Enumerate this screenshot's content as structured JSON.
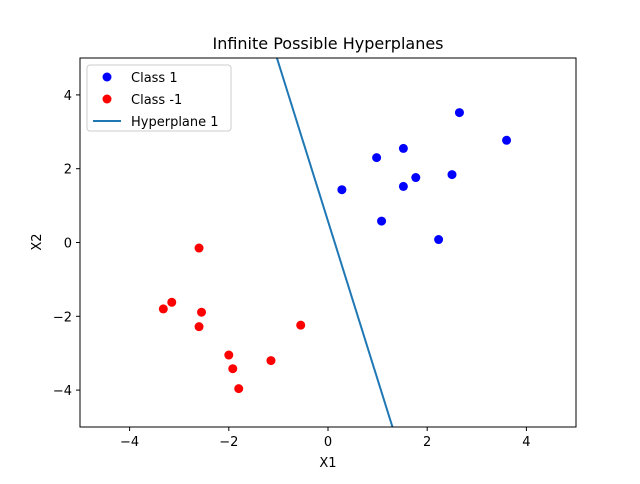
{
  "chart_data": {
    "type": "scatter",
    "title": "Infinite Possible Hyperplanes",
    "xlabel": "X1",
    "ylabel": "X2",
    "xlim": [
      -5,
      5
    ],
    "ylim": [
      -5,
      5
    ],
    "xticks": [
      -4,
      -2,
      0,
      2,
      4
    ],
    "yticks": [
      -4,
      -2,
      0,
      2,
      4
    ],
    "xtick_labels": [
      "−4",
      "−2",
      "0",
      "2",
      "4"
    ],
    "ytick_labels": [
      "−4",
      "−2",
      "0",
      "2",
      "4"
    ],
    "grid": false,
    "legend_position": "top-left",
    "series": [
      {
        "name": "Class 1",
        "kind": "scatter",
        "color": "#0000ff",
        "points": [
          [
            0.28,
            1.43
          ],
          [
            0.98,
            2.3
          ],
          [
            1.52,
            2.55
          ],
          [
            1.52,
            1.52
          ],
          [
            1.77,
            1.76
          ],
          [
            1.08,
            0.58
          ],
          [
            2.23,
            0.08
          ],
          [
            2.5,
            1.84
          ],
          [
            2.65,
            3.52
          ],
          [
            3.6,
            2.77
          ]
        ]
      },
      {
        "name": "Class -1",
        "kind": "scatter",
        "color": "#ff0000",
        "points": [
          [
            -2.6,
            -0.15
          ],
          [
            -3.15,
            -1.62
          ],
          [
            -3.32,
            -1.8
          ],
          [
            -2.55,
            -1.89
          ],
          [
            -2.6,
            -2.28
          ],
          [
            -0.55,
            -2.24
          ],
          [
            -2.0,
            -3.05
          ],
          [
            -1.92,
            -3.42
          ],
          [
            -1.8,
            -3.96
          ],
          [
            -1.15,
            -3.2
          ]
        ]
      },
      {
        "name": "Hyperplane 1",
        "kind": "line",
        "color": "#1f77b4",
        "points": [
          [
            -1.03,
            5.0
          ],
          [
            1.3,
            -5.0
          ]
        ]
      }
    ]
  }
}
